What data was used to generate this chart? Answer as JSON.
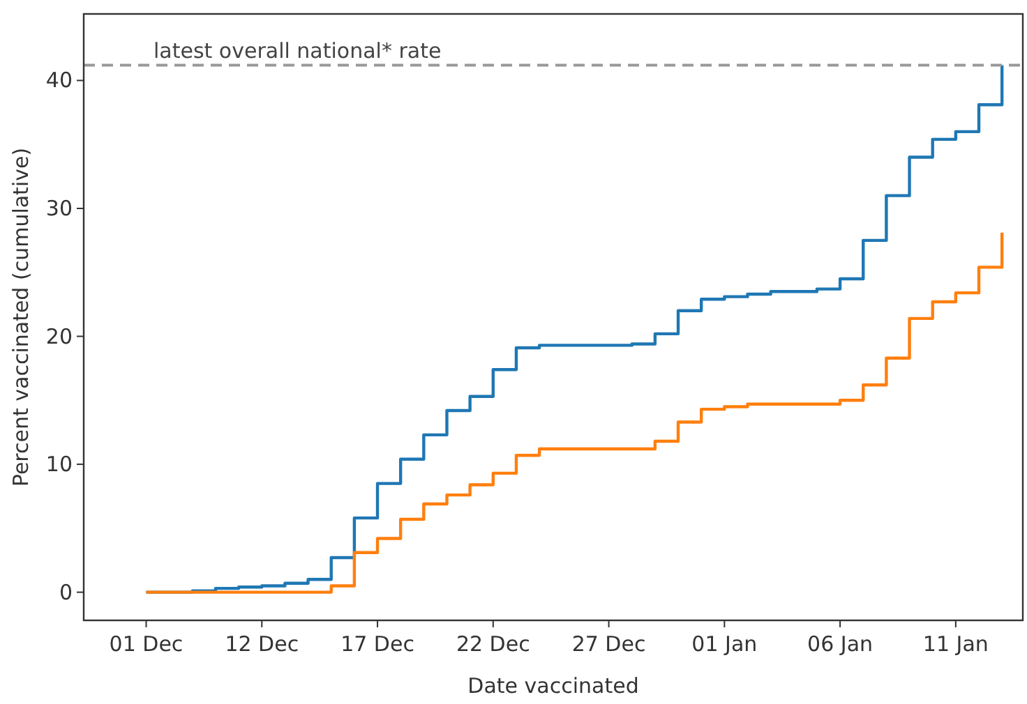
{
  "chart_data": {
    "type": "step",
    "xlabel": "Date vaccinated",
    "ylabel": "Percent vaccinated (cumulative)",
    "categories": [
      "01 Dec",
      null,
      null,
      null,
      null,
      "12 Dec",
      null,
      null,
      null,
      null,
      "17 Dec",
      null,
      null,
      null,
      null,
      "22 Dec",
      null,
      null,
      null,
      null,
      "27 Dec",
      null,
      null,
      null,
      null,
      "01 Jan",
      null,
      null,
      null,
      null,
      "06 Jan",
      null,
      null,
      null,
      null,
      "11 Jan",
      null,
      null
    ],
    "series": [
      {
        "color": "#1f77b4",
        "values": [
          0,
          0,
          0.1,
          0.3,
          0.4,
          0.5,
          0.7,
          1.0,
          2.7,
          5.8,
          8.5,
          10.4,
          12.3,
          14.2,
          15.3,
          17.4,
          19.1,
          19.3,
          19.3,
          19.3,
          19.3,
          19.4,
          20.2,
          22.0,
          22.9,
          23.1,
          23.3,
          23.5,
          23.5,
          23.7,
          24.5,
          27.5,
          31.0,
          34.0,
          35.4,
          36.0,
          38.1,
          41.2
        ]
      },
      {
        "color": "#ff7f0e",
        "values": [
          0,
          0,
          0,
          0,
          0,
          0,
          0,
          0,
          0.5,
          3.1,
          4.2,
          5.7,
          6.9,
          7.6,
          8.4,
          9.3,
          10.7,
          11.2,
          11.2,
          11.2,
          11.2,
          11.2,
          11.8,
          13.3,
          14.3,
          14.5,
          14.7,
          14.7,
          14.7,
          14.7,
          15.0,
          16.2,
          18.3,
          21.4,
          22.7,
          23.4,
          25.4,
          28.1
        ]
      }
    ],
    "ylim": [
      -2.2,
      45.2
    ],
    "yticks": [
      0,
      10,
      20,
      30,
      40
    ],
    "ref_lines": [
      {
        "axis": "y",
        "value": 41.2,
        "label": "latest overall national* rate",
        "color": "#999999",
        "line_style": "dashed"
      }
    ],
    "grid": false,
    "line_style": "solid"
  }
}
